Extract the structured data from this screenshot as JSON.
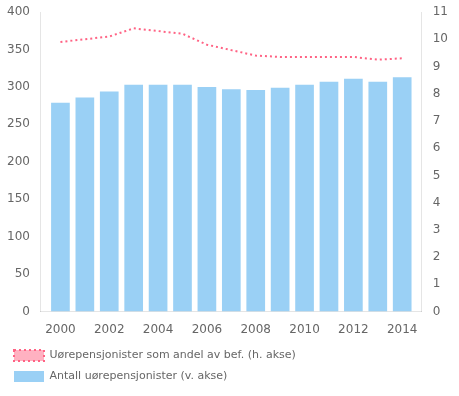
{
  "chart_data": {
    "type": "bar",
    "x": [
      2000,
      2001,
      2002,
      2003,
      2004,
      2005,
      2006,
      2007,
      2008,
      2009,
      2010,
      2011,
      2012,
      2013,
      2014
    ],
    "xlim": [
      1999.2,
      2014.8
    ],
    "xticks": [
      2000,
      2002,
      2004,
      2006,
      2008,
      2010,
      2012,
      2014
    ],
    "ylim": [
      0,
      400
    ],
    "yticks": [
      0,
      50,
      100,
      150,
      200,
      250,
      300,
      350,
      400
    ],
    "y2lim": [
      0,
      11
    ],
    "y2ticks": [
      0,
      1,
      2,
      3,
      4,
      5,
      6,
      7,
      8,
      9,
      10,
      11
    ],
    "grid": false,
    "legend": "bottom",
    "series": [
      {
        "name": "Antall uørepensjonister (v. akse)",
        "type": "bar",
        "values": [
          279,
          286,
          294,
          303,
          303,
          303,
          300,
          297,
          296,
          299,
          303,
          307,
          311,
          307,
          313
        ]
      },
      {
        "name": "Uørepensjonister som andel av bef. (h. akse)",
        "type": "line",
        "axis": "y2",
        "line_style": "dotted",
        "values": [
          9.9,
          10.0,
          10.1,
          10.4,
          10.3,
          10.2,
          9.8,
          9.6,
          9.4,
          9.35,
          9.35,
          9.35,
          9.35,
          9.25,
          9.3
        ]
      }
    ]
  }
}
